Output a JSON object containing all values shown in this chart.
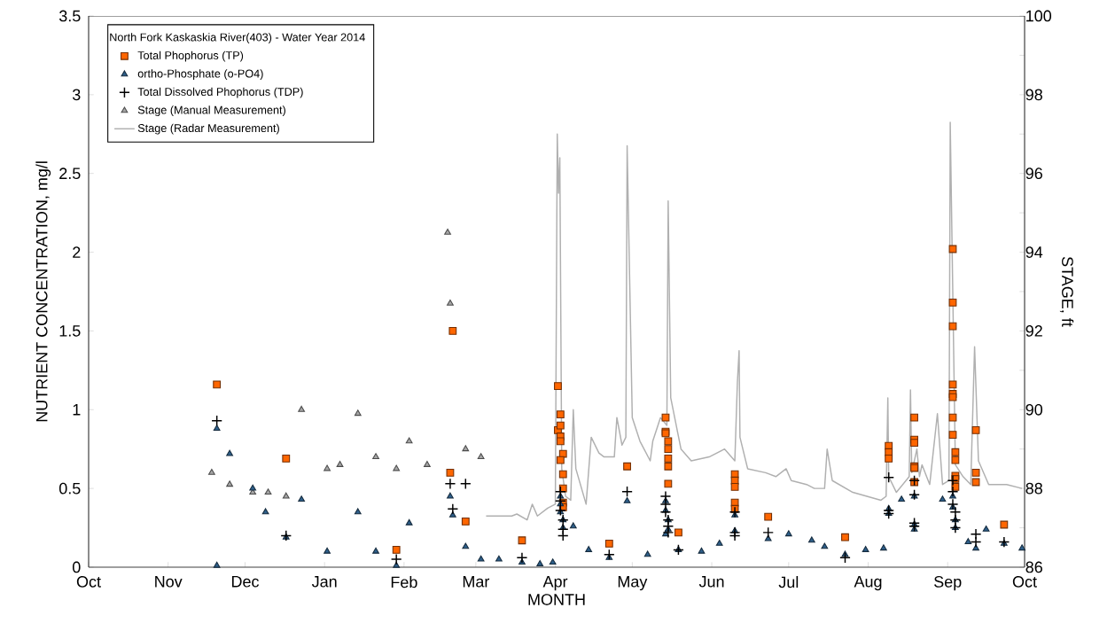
{
  "chart_data": {
    "type": "scatter",
    "xlabel": "MONTH",
    "ylabel": "NUTRIENT CONCENTRATION, mg/l",
    "y2label": "STAGE, ft",
    "legend_title": "North Fork Kaskaskia River(403) - Water Year 2014",
    "legend": "top left",
    "xlim": [
      "2013-10-01",
      "2014-10-01"
    ],
    "xticks": [
      {
        "value": "2013-10-01",
        "label": "Oct"
      },
      {
        "value": "2013-11-01",
        "label": "Nov"
      },
      {
        "value": "2013-12-01",
        "label": "Dec"
      },
      {
        "value": "2014-01-01",
        "label": "Jan"
      },
      {
        "value": "2014-02-01",
        "label": "Feb"
      },
      {
        "value": "2014-03-01",
        "label": "Mar"
      },
      {
        "value": "2014-04-01",
        "label": "Apr"
      },
      {
        "value": "2014-05-01",
        "label": "May"
      },
      {
        "value": "2014-06-01",
        "label": "Jun"
      },
      {
        "value": "2014-07-01",
        "label": "Jul"
      },
      {
        "value": "2014-08-01",
        "label": "Aug"
      },
      {
        "value": "2014-09-01",
        "label": "Sep"
      },
      {
        "value": "2014-10-01",
        "label": "Oct"
      }
    ],
    "ylim": [
      0,
      3.5
    ],
    "yticks": [
      0,
      0.5,
      1,
      1.5,
      2,
      2.5,
      3,
      3.5
    ],
    "y2lim": [
      86,
      100
    ],
    "y2ticks": [
      86,
      {
        "value": 87,
        "label": null
      },
      88,
      {
        "value": 89,
        "label": null
      },
      90,
      {
        "value": 91,
        "label": null
      },
      92,
      {
        "value": 93,
        "label": null
      },
      94,
      {
        "value": 95,
        "label": null
      },
      96,
      {
        "value": 97,
        "label": null
      },
      98,
      {
        "value": 99,
        "label": null
      },
      100
    ],
    "series": [
      {
        "name": "Total Phophorus (TP)",
        "marker": "square",
        "color": "#ff6600",
        "x": [
          "2013-11-20",
          "2013-12-17",
          "2014-01-29",
          "2014-02-20",
          "2014-02-19",
          "2014-02-25",
          "2014-03-19",
          "2014-04-02",
          "2014-04-02",
          "2014-04-03",
          "2014-04-03",
          "2014-04-03",
          "2014-04-03",
          "2014-04-04",
          "2014-04-03",
          "2014-04-04",
          "2014-04-04",
          "2014-04-04",
          "2014-04-04",
          "2014-04-22",
          "2014-04-29",
          "2014-05-14",
          "2014-05-14",
          "2014-05-14",
          "2014-05-15",
          "2014-05-15",
          "2014-05-15",
          "2014-05-15",
          "2014-05-15",
          "2014-05-19",
          "2014-06-10",
          "2014-06-10",
          "2014-06-10",
          "2014-06-10",
          "2014-06-10",
          "2014-06-23",
          "2014-07-23",
          "2014-08-09",
          "2014-08-09",
          "2014-08-09",
          "2014-08-19",
          "2014-08-19",
          "2014-08-19",
          "2014-08-19",
          "2014-08-19",
          "2014-08-19",
          "2014-09-03",
          "2014-09-03",
          "2014-09-03",
          "2014-09-03",
          "2014-09-03",
          "2014-09-03",
          "2014-09-03",
          "2014-09-03",
          "2014-09-04",
          "2014-09-04",
          "2014-09-04",
          "2014-09-04",
          "2014-09-04",
          "2014-09-12",
          "2014-09-12",
          "2014-09-12",
          "2014-09-23"
        ],
        "values": [
          1.16,
          0.69,
          0.11,
          1.5,
          0.6,
          0.29,
          0.17,
          1.15,
          0.87,
          0.97,
          0.9,
          0.83,
          0.8,
          0.72,
          0.68,
          0.59,
          0.5,
          0.41,
          0.38,
          0.15,
          0.64,
          0.95,
          0.86,
          0.85,
          0.8,
          0.75,
          0.69,
          0.64,
          0.53,
          0.22,
          0.59,
          0.55,
          0.51,
          0.41,
          0.37,
          0.32,
          0.19,
          0.77,
          0.73,
          0.69,
          0.95,
          0.81,
          0.79,
          0.64,
          0.63,
          0.54,
          2.02,
          1.68,
          1.53,
          1.16,
          1.1,
          1.08,
          0.95,
          0.84,
          0.73,
          0.68,
          0.58,
          0.56,
          0.51,
          0.87,
          0.6,
          0.54,
          0.27
        ]
      },
      {
        "name": "ortho-Phosphate (o-PO4)",
        "marker": "triangle",
        "color": "#2e5f8a",
        "x": [
          "2013-11-20",
          "2013-11-20",
          "2013-11-25",
          "2013-12-04",
          "2013-12-09",
          "2013-12-17",
          "2013-12-23",
          "2014-01-02",
          "2014-01-14",
          "2014-01-21",
          "2014-01-29",
          "2014-02-03",
          "2014-02-19",
          "2014-02-20",
          "2014-02-25",
          "2014-03-03",
          "2014-03-10",
          "2014-03-19",
          "2014-03-26",
          "2014-03-31",
          "2014-04-03",
          "2014-04-03",
          "2014-04-03",
          "2014-04-04",
          "2014-04-04",
          "2014-04-08",
          "2014-04-14",
          "2014-04-22",
          "2014-04-29",
          "2014-05-07",
          "2014-05-14",
          "2014-05-14",
          "2014-05-15",
          "2014-05-15",
          "2014-05-14",
          "2014-05-19",
          "2014-05-28",
          "2014-06-04",
          "2014-06-10",
          "2014-06-10",
          "2014-06-23",
          "2014-07-01",
          "2014-07-10",
          "2014-07-15",
          "2014-07-23",
          "2014-07-31",
          "2014-08-07",
          "2014-08-09",
          "2014-08-09",
          "2014-08-14",
          "2014-08-19",
          "2014-08-19",
          "2014-08-19",
          "2014-08-30",
          "2014-09-03",
          "2014-09-03",
          "2014-09-04",
          "2014-09-04",
          "2014-09-09",
          "2014-09-12",
          "2014-09-16",
          "2014-09-23",
          "2014-09-30"
        ],
        "values": [
          0.88,
          0.01,
          0.72,
          0.5,
          0.35,
          0.19,
          0.43,
          0.1,
          0.35,
          0.1,
          0.01,
          0.28,
          0.45,
          0.33,
          0.13,
          0.05,
          0.05,
          0.03,
          0.02,
          0.03,
          0.45,
          0.4,
          0.35,
          0.3,
          0.25,
          0.26,
          0.11,
          0.06,
          0.42,
          0.08,
          0.42,
          0.36,
          0.3,
          0.24,
          0.21,
          0.11,
          0.1,
          0.15,
          0.33,
          0.23,
          0.18,
          0.21,
          0.17,
          0.13,
          0.08,
          0.11,
          0.12,
          0.37,
          0.34,
          0.43,
          0.45,
          0.27,
          0.24,
          0.43,
          0.45,
          0.38,
          0.3,
          0.25,
          0.16,
          0.12,
          0.24,
          0.15,
          0.12
        ]
      },
      {
        "name": "Total Dissolved Phophorus (TDP)",
        "marker": "cross",
        "color": "#000000",
        "x": [
          "2013-11-20",
          "2013-12-17",
          "2014-01-29",
          "2014-02-19",
          "2014-02-20",
          "2014-02-25",
          "2014-03-19",
          "2014-04-03",
          "2014-04-03",
          "2014-04-03",
          "2014-04-04",
          "2014-04-04",
          "2014-04-04",
          "2014-04-22",
          "2014-04-29",
          "2014-05-14",
          "2014-05-14",
          "2014-05-14",
          "2014-05-15",
          "2014-05-15",
          "2014-05-15",
          "2014-05-19",
          "2014-06-10",
          "2014-06-10",
          "2014-06-10",
          "2014-06-23",
          "2014-07-23",
          "2014-08-09",
          "2014-08-09",
          "2014-08-09",
          "2014-08-19",
          "2014-08-19",
          "2014-08-19",
          "2014-08-19",
          "2014-09-03",
          "2014-09-03",
          "2014-09-03",
          "2014-09-04",
          "2014-09-04",
          "2014-09-04",
          "2014-09-12",
          "2014-09-12",
          "2014-09-23"
        ],
        "values": [
          0.93,
          0.2,
          0.05,
          0.53,
          0.37,
          0.53,
          0.06,
          0.48,
          0.42,
          0.36,
          0.3,
          0.24,
          0.2,
          0.08,
          0.48,
          0.45,
          0.4,
          0.35,
          0.3,
          0.26,
          0.22,
          0.11,
          0.35,
          0.22,
          0.2,
          0.22,
          0.06,
          0.57,
          0.36,
          0.34,
          0.55,
          0.46,
          0.28,
          0.26,
          0.55,
          0.48,
          0.4,
          0.35,
          0.3,
          0.25,
          0.21,
          0.16,
          0.16
        ]
      },
      {
        "name": "Stage (Manual Measurement)",
        "marker": "triangle",
        "axis": "y2",
        "color": "#a6a6a6",
        "x": [
          "2013-11-18",
          "2013-11-25",
          "2013-12-04",
          "2013-12-10",
          "2013-12-17",
          "2013-12-23",
          "2014-01-02",
          "2014-01-07",
          "2014-01-14",
          "2014-01-21",
          "2014-01-29",
          "2014-02-03",
          "2014-02-10",
          "2014-02-18",
          "2014-02-19",
          "2014-02-25",
          "2014-03-03"
        ],
        "values": [
          88.4,
          88.1,
          87.9,
          87.9,
          87.8,
          90.0,
          88.5,
          88.6,
          89.9,
          88.8,
          88.5,
          89.2,
          88.6,
          94.5,
          92.7,
          89.0,
          88.8
        ]
      },
      {
        "name": "Stage (Radar Measurement)",
        "type": "line",
        "marker": "none",
        "axis": "y2",
        "color": "#b0b0b0",
        "x": [
          "2014-03-05",
          "2014-03-15",
          "2014-03-17",
          "2014-03-21",
          "2014-03-23",
          "2014-03-25",
          "2014-03-29",
          "2014-04-01T00:00",
          "2014-04-01T18:00",
          "2014-04-02T06:00",
          "2014-04-02T18:00",
          "2014-04-03T12:00",
          "2014-04-05",
          "2014-04-07",
          "2014-04-08",
          "2014-04-09",
          "2014-04-13",
          "2014-04-15",
          "2014-04-18",
          "2014-04-20",
          "2014-04-24",
          "2014-04-25",
          "2014-04-27",
          "2014-04-28T12:00",
          "2014-04-29",
          "2014-05-01",
          "2014-05-04",
          "2014-05-08",
          "2014-05-09",
          "2014-05-12",
          "2014-05-14T12:00",
          "2014-05-15",
          "2014-05-16",
          "2014-05-20",
          "2014-05-24",
          "2014-05-31",
          "2014-06-06",
          "2014-06-10",
          "2014-06-11",
          "2014-06-11T16:00",
          "2014-06-12",
          "2014-06-15",
          "2014-06-22",
          "2014-06-26",
          "2014-06-30",
          "2014-07-02",
          "2014-07-08",
          "2014-07-11",
          "2014-07-15",
          "2014-07-16",
          "2014-07-18",
          "2014-07-26",
          "2014-08-06",
          "2014-08-08",
          "2014-08-08T16:00",
          "2014-08-09",
          "2014-08-12",
          "2014-08-17",
          "2014-08-17T12:00",
          "2014-08-18",
          "2014-08-20",
          "2014-08-21",
          "2014-08-22",
          "2014-08-25",
          "2014-08-28",
          "2014-08-30",
          "2014-09-01T12:00",
          "2014-09-02",
          "2014-09-04",
          "2014-09-07",
          "2014-09-10",
          "2014-09-11T12:00",
          "2014-09-13",
          "2014-09-17",
          "2014-09-24",
          "2014-09-30"
        ],
        "values": [
          87.3,
          87.3,
          87.35,
          87.2,
          87.6,
          87.3,
          87.5,
          87.6,
          97.0,
          95.5,
          96.4,
          88.5,
          87.8,
          87.7,
          90.0,
          88.5,
          87.6,
          89.3,
          88.9,
          88.8,
          88.8,
          89.8,
          89.1,
          89.3,
          96.7,
          89.8,
          89.2,
          88.7,
          89.2,
          89.8,
          89.6,
          95.3,
          90.3,
          89.0,
          88.7,
          88.8,
          89.0,
          88.7,
          90.7,
          91.5,
          89.3,
          88.5,
          88.4,
          88.3,
          88.5,
          88.2,
          88.1,
          88.0,
          88.0,
          89.0,
          88.2,
          87.9,
          87.7,
          87.8,
          90.3,
          88.3,
          87.9,
          88.3,
          90.5,
          88.4,
          89.0,
          88.3,
          88.6,
          88.1,
          89.9,
          88.1,
          88.2,
          97.3,
          88.6,
          88.3,
          88.1,
          91.6,
          88.7,
          88.1,
          88.1,
          88.0
        ]
      }
    ]
  }
}
